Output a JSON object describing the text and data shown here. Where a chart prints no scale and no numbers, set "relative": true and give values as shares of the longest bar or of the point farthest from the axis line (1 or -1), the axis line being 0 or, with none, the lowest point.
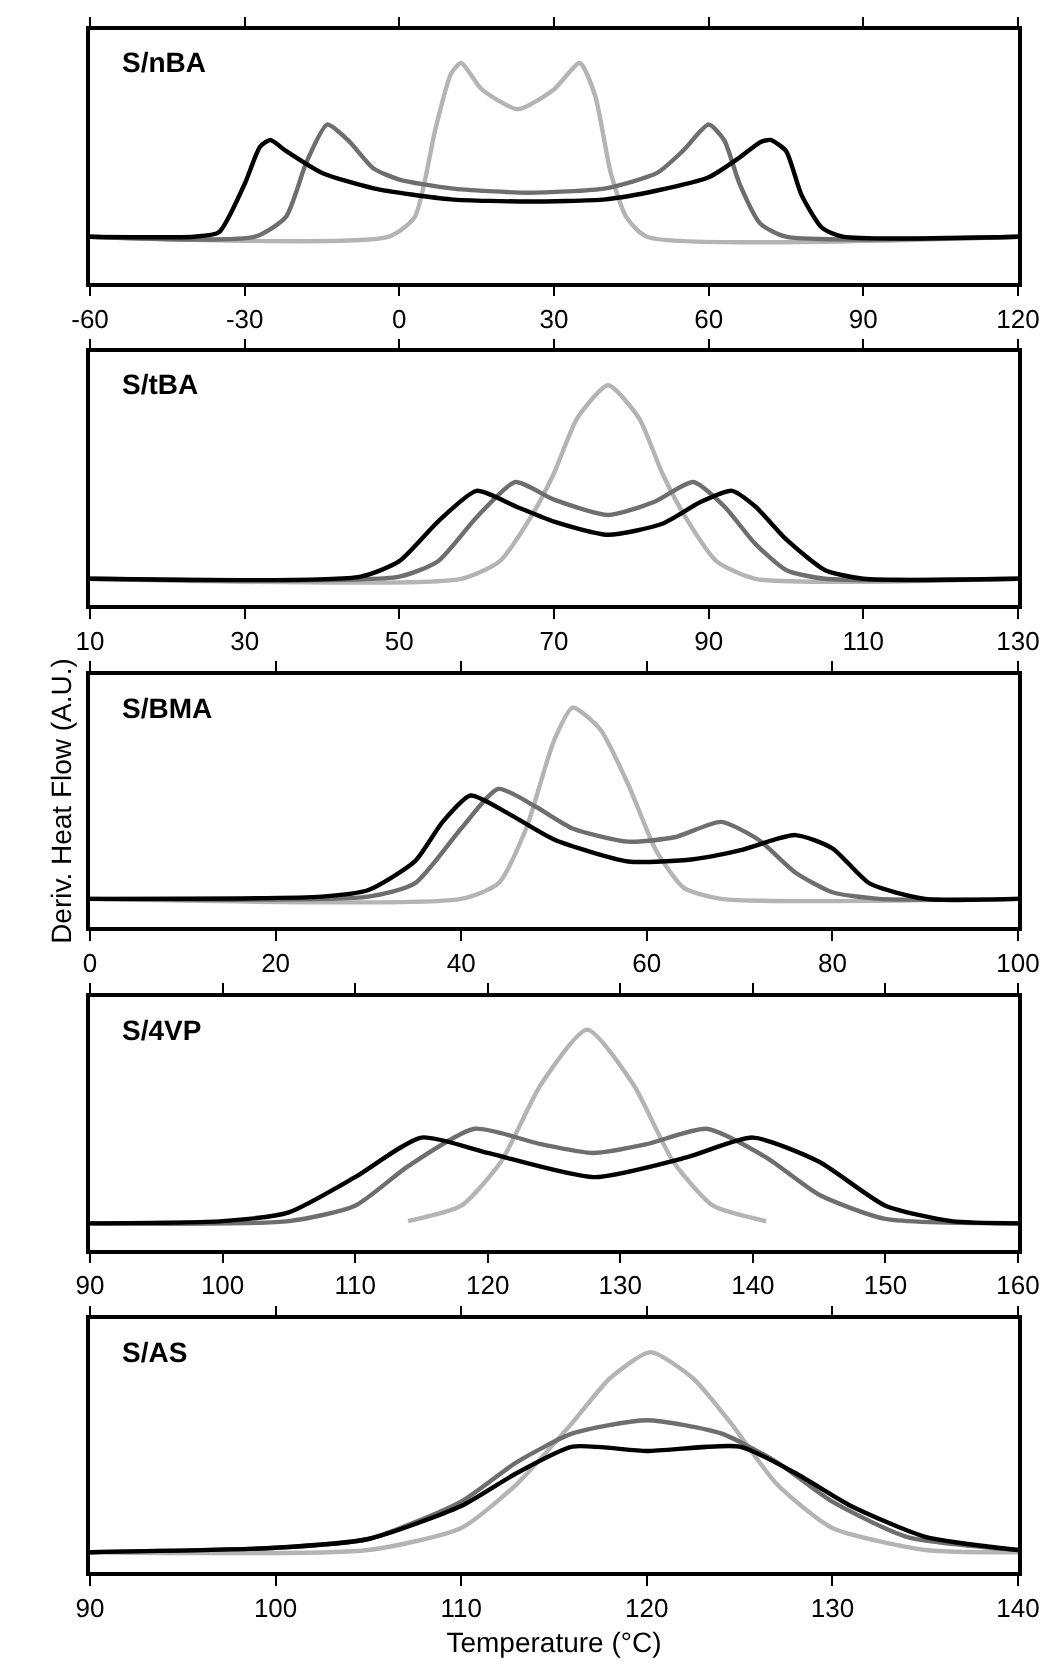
{
  "chart_data": [
    {
      "type": "line",
      "title": "S/nBA",
      "relative": true,
      "line_style": "solid",
      "xlim": [
        -60,
        120
      ],
      "xticks": [
        -60,
        -30,
        0,
        30,
        60,
        90,
        120
      ],
      "series": [
        {
          "color": "#b4b4b4",
          "x": [
            -60,
            -2,
            3,
            7,
            10,
            12,
            16,
            23,
            30,
            35,
            38,
            41,
            44,
            48,
            120
          ],
          "values": [
            0.21,
            0.21,
            0.3,
            0.7,
            0.95,
            1,
            0.88,
            0.79,
            0.88,
            1,
            0.85,
            0.5,
            0.3,
            0.21,
            0.21
          ]
        },
        {
          "color": "#6e6e6e",
          "x": [
            -60,
            -28,
            -22,
            -18,
            -14,
            -10,
            -5,
            0,
            10,
            25,
            40,
            50,
            55,
            60,
            63,
            66,
            70,
            75,
            120
          ],
          "values": [
            0.21,
            0.21,
            0.3,
            0.55,
            0.72,
            0.65,
            0.52,
            0.47,
            0.43,
            0.41,
            0.43,
            0.5,
            0.6,
            0.72,
            0.65,
            0.45,
            0.27,
            0.21,
            0.21
          ]
        },
        {
          "color": "#000000",
          "x": [
            -60,
            -40,
            -35,
            -30,
            -27,
            -25,
            -22,
            -15,
            -5,
            10,
            25,
            40,
            50,
            60,
            66,
            70,
            72,
            75,
            78,
            82,
            86,
            120
          ],
          "values": [
            0.21,
            0.21,
            0.23,
            0.45,
            0.62,
            0.65,
            0.6,
            0.5,
            0.43,
            0.38,
            0.37,
            0.38,
            0.42,
            0.48,
            0.57,
            0.64,
            0.65,
            0.6,
            0.4,
            0.25,
            0.21,
            0.21
          ]
        }
      ]
    },
    {
      "type": "line",
      "title": "S/tBA",
      "relative": true,
      "line_style": "solid",
      "xlim": [
        10,
        130
      ],
      "xticks": [
        10,
        30,
        50,
        70,
        90,
        110,
        130
      ],
      "series": [
        {
          "color": "#b4b4b4",
          "x": [
            10,
            58,
            63,
            67,
            70,
            73,
            77,
            81,
            84,
            87,
            91,
            96,
            130
          ],
          "values": [
            0.12,
            0.12,
            0.2,
            0.4,
            0.6,
            0.85,
            1,
            0.85,
            0.6,
            0.4,
            0.2,
            0.12,
            0.12
          ]
        },
        {
          "color": "#6e6e6e",
          "x": [
            10,
            50,
            55,
            60,
            65,
            70,
            77,
            83,
            88,
            92,
            96,
            100,
            105,
            130
          ],
          "values": [
            0.12,
            0.13,
            0.2,
            0.4,
            0.56,
            0.48,
            0.41,
            0.47,
            0.56,
            0.45,
            0.28,
            0.16,
            0.12,
            0.12
          ]
        },
        {
          "color": "#000000",
          "x": [
            10,
            45,
            50,
            55,
            60,
            65,
            70,
            77,
            84,
            89,
            93,
            96,
            100,
            105,
            110,
            130
          ],
          "values": [
            0.12,
            0.13,
            0.2,
            0.38,
            0.52,
            0.45,
            0.38,
            0.32,
            0.37,
            0.47,
            0.52,
            0.45,
            0.3,
            0.16,
            0.12,
            0.12
          ]
        }
      ]
    },
    {
      "type": "line",
      "title": "S/BMA",
      "ylabel": "Deriv. Heat Flow (A.U.)",
      "relative": true,
      "line_style": "solid",
      "xlim": [
        0,
        100
      ],
      "xticks": [
        0,
        20,
        40,
        60,
        80,
        100
      ],
      "series": [
        {
          "color": "#b4b4b4",
          "x": [
            0,
            40,
            44,
            47,
            50,
            52,
            55,
            58,
            61,
            64,
            68,
            100
          ],
          "values": [
            0.13,
            0.13,
            0.2,
            0.45,
            0.85,
            1,
            0.9,
            0.65,
            0.35,
            0.18,
            0.13,
            0.13
          ]
        },
        {
          "color": "#6e6e6e",
          "x": [
            0,
            30,
            35,
            40,
            44,
            48,
            52,
            58,
            63,
            68,
            72,
            76,
            80,
            85,
            100
          ],
          "values": [
            0.13,
            0.14,
            0.2,
            0.45,
            0.63,
            0.55,
            0.45,
            0.39,
            0.41,
            0.48,
            0.4,
            0.25,
            0.16,
            0.13,
            0.13
          ]
        },
        {
          "color": "#000000",
          "x": [
            0,
            25,
            30,
            35,
            38,
            41,
            45,
            50,
            58,
            65,
            70,
            76,
            80,
            84,
            90,
            100
          ],
          "values": [
            0.13,
            0.14,
            0.17,
            0.3,
            0.48,
            0.6,
            0.52,
            0.4,
            0.3,
            0.31,
            0.35,
            0.42,
            0.36,
            0.2,
            0.13,
            0.13
          ]
        }
      ]
    },
    {
      "type": "line",
      "title": "S/4VP",
      "relative": true,
      "line_style": "solid",
      "xlim": [
        90,
        160
      ],
      "xticks": [
        90,
        100,
        110,
        120,
        130,
        140,
        150,
        160
      ],
      "series": [
        {
          "color": "#b4b4b4",
          "x": [
            114,
            118,
            121,
            124,
            127.5,
            131,
            134,
            137,
            141
          ],
          "values": [
            0.13,
            0.2,
            0.4,
            0.75,
            1,
            0.75,
            0.4,
            0.2,
            0.13
          ]
        },
        {
          "color": "#6e6e6e",
          "x": [
            90,
            105,
            110,
            114,
            119,
            124,
            128,
            132,
            136.5,
            141,
            145,
            150,
            160
          ],
          "values": [
            0.12,
            0.13,
            0.2,
            0.38,
            0.55,
            0.48,
            0.44,
            0.48,
            0.55,
            0.42,
            0.25,
            0.14,
            0.12
          ]
        },
        {
          "color": "#000000",
          "x": [
            90,
            100,
            105,
            110,
            115,
            120,
            128,
            135,
            140,
            145,
            150,
            155,
            160
          ],
          "values": [
            0.12,
            0.13,
            0.17,
            0.33,
            0.51,
            0.44,
            0.33,
            0.42,
            0.51,
            0.4,
            0.2,
            0.13,
            0.12
          ]
        }
      ]
    },
    {
      "type": "line",
      "title": "S/AS",
      "xlabel": "Temperature (°C)",
      "relative": true,
      "line_style": "solid",
      "xlim": [
        90,
        140
      ],
      "xticks": [
        90,
        100,
        110,
        120,
        130,
        140
      ],
      "series": [
        {
          "color": "#b4b4b4",
          "x": [
            90,
            105,
            110,
            113,
            116,
            118,
            120.2,
            122.5,
            124.5,
            127,
            130,
            135,
            140
          ],
          "values": [
            0.09,
            0.1,
            0.2,
            0.4,
            0.68,
            0.88,
            1,
            0.88,
            0.68,
            0.4,
            0.2,
            0.1,
            0.09
          ]
        },
        {
          "color": "#6e6e6e",
          "x": [
            90,
            100,
            105,
            110,
            113,
            116,
            120,
            124,
            127,
            130,
            134,
            140
          ],
          "values": [
            0.09,
            0.11,
            0.15,
            0.32,
            0.5,
            0.63,
            0.69,
            0.63,
            0.5,
            0.32,
            0.16,
            0.1
          ]
        },
        {
          "color": "#000000",
          "x": [
            90,
            100,
            105,
            110,
            113,
            116,
            120,
            125,
            128,
            131,
            135,
            140
          ],
          "values": [
            0.09,
            0.11,
            0.15,
            0.3,
            0.45,
            0.57,
            0.55,
            0.57,
            0.45,
            0.3,
            0.16,
            0.1
          ]
        }
      ]
    }
  ]
}
